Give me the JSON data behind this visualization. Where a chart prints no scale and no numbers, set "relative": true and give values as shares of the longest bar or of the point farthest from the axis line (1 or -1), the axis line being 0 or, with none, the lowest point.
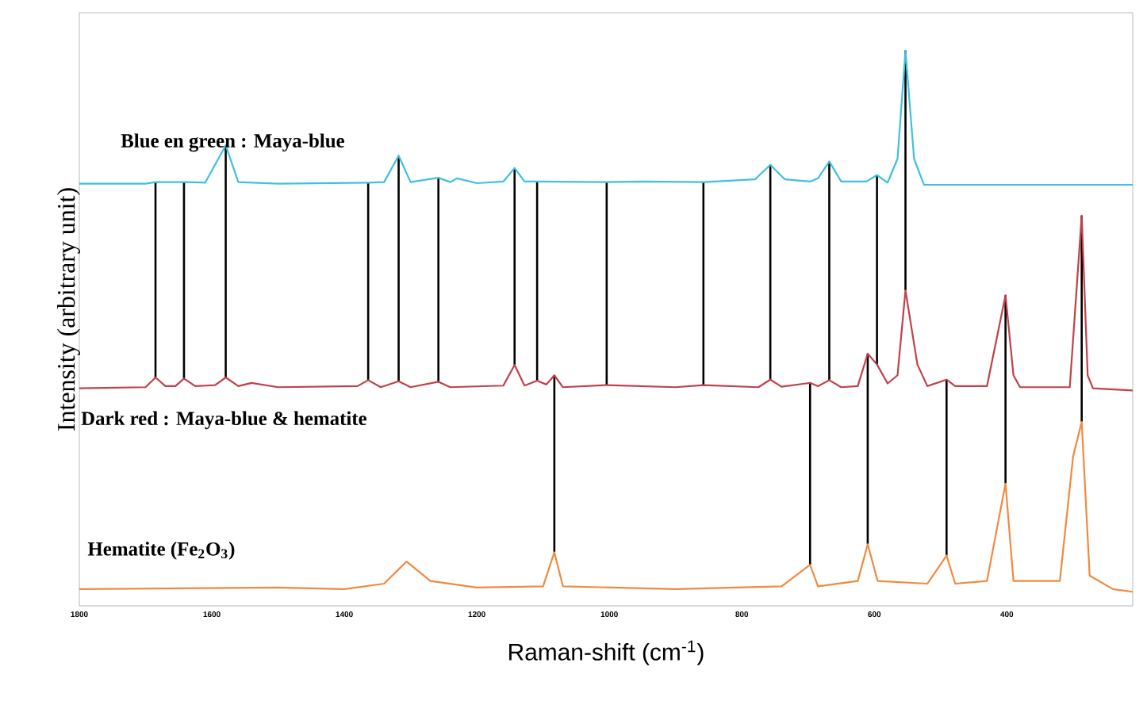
{
  "chart_data": {
    "type": "line",
    "relative": true,
    "xlabel": "Raman-shift (cm$^{-1}$)",
    "ylabel": "Intensity (arbitrary unit)",
    "xlim": [
      1800,
      210
    ],
    "xticks": [
      1800,
      1600,
      1400,
      1200,
      1000,
      800,
      600,
      400
    ],
    "grid": false,
    "legend": false,
    "marker": "none",
    "line_style": "solid",
    "series": [
      {
        "name": "**Blue en green : Maya-blue**",
        "color": "#3fc0e0",
        "x": [
          1800,
          1700,
          1685,
          1642,
          1610,
          1579,
          1560,
          1500,
          1364,
          1340,
          1318,
          1300,
          1258,
          1240,
          1230,
          1200,
          1160,
          1143,
          1128,
          1109,
          1004,
          950,
          858,
          780,
          757,
          735,
          697,
          685,
          668,
          650,
          612,
          596,
          580,
          565,
          553,
          540,
          525,
          400,
          210
        ],
        "values": [
          0.754,
          0.754,
          0.757,
          0.757,
          0.756,
          0.825,
          0.757,
          0.754,
          0.756,
          0.757,
          0.806,
          0.757,
          0.765,
          0.757,
          0.764,
          0.755,
          0.758,
          0.783,
          0.758,
          0.758,
          0.757,
          0.758,
          0.757,
          0.762,
          0.789,
          0.762,
          0.758,
          0.764,
          0.795,
          0.758,
          0.758,
          0.77,
          0.756,
          0.8,
          1.0,
          0.8,
          0.752,
          0.752,
          0.752
        ]
      },
      {
        "name": "**Dark red : Maya-blue & hematite**",
        "color": "#c0404a",
        "x": [
          1800,
          1700,
          1685,
          1670,
          1655,
          1642,
          1625,
          1595,
          1579,
          1560,
          1540,
          1500,
          1380,
          1364,
          1345,
          1318,
          1300,
          1258,
          1240,
          1160,
          1143,
          1128,
          1109,
          1095,
          1083,
          1070,
          1004,
          900,
          858,
          775,
          757,
          740,
          697,
          685,
          668,
          650,
          625,
          610,
          596,
          580,
          565,
          553,
          535,
          520,
          491,
          478,
          430,
          402,
          390,
          380,
          305,
          287,
          278,
          270,
          210
        ],
        "values": [
          0.376,
          0.378,
          0.396,
          0.38,
          0.38,
          0.394,
          0.38,
          0.382,
          0.396,
          0.38,
          0.386,
          0.378,
          0.38,
          0.391,
          0.378,
          0.389,
          0.378,
          0.388,
          0.378,
          0.381,
          0.419,
          0.381,
          0.39,
          0.383,
          0.4,
          0.378,
          0.382,
          0.378,
          0.382,
          0.378,
          0.392,
          0.379,
          0.386,
          0.38,
          0.391,
          0.378,
          0.38,
          0.44,
          0.42,
          0.385,
          0.4,
          0.557,
          0.42,
          0.38,
          0.392,
          0.38,
          0.38,
          0.548,
          0.4,
          0.378,
          0.378,
          0.695,
          0.4,
          0.376,
          0.372
        ]
      },
      {
        "name": "**Hematite (Fe$_{2}$O$_{3}$)**",
        "color": "#f08a40",
        "x": [
          1800,
          1500,
          1400,
          1340,
          1306,
          1270,
          1200,
          1100,
          1083,
          1070,
          900,
          740,
          697,
          685,
          625,
          610,
          595,
          520,
          491,
          478,
          430,
          402,
          390,
          320,
          300,
          287,
          275,
          240,
          210
        ],
        "values": [
          0.005,
          0.008,
          0.005,
          0.015,
          0.056,
          0.02,
          0.008,
          0.01,
          0.073,
          0.01,
          0.005,
          0.01,
          0.05,
          0.01,
          0.02,
          0.088,
          0.02,
          0.015,
          0.067,
          0.015,
          0.02,
          0.2,
          0.02,
          0.02,
          0.25,
          0.314,
          0.03,
          0.005,
          0.0
        ]
      }
    ],
    "ref_lines": [
      {
        "axis": "x",
        "value": 1685,
        "color": "#000000"
      },
      {
        "axis": "x",
        "value": 1642,
        "color": "#000000"
      },
      {
        "axis": "x",
        "value": 1579,
        "color": "#000000"
      },
      {
        "axis": "x",
        "value": 1364,
        "color": "#000000"
      },
      {
        "axis": "x",
        "value": 1318,
        "color": "#000000"
      },
      {
        "axis": "x",
        "value": 1258,
        "color": "#000000"
      },
      {
        "axis": "x",
        "value": 1143,
        "color": "#000000"
      },
      {
        "axis": "x",
        "value": 1109,
        "color": "#000000"
      },
      {
        "axis": "x",
        "value": 1083,
        "color": "#000000"
      },
      {
        "axis": "x",
        "value": 1004,
        "color": "#000000"
      },
      {
        "axis": "x",
        "value": 858,
        "color": "#000000"
      },
      {
        "axis": "x",
        "value": 757,
        "color": "#000000"
      },
      {
        "axis": "x",
        "value": 697,
        "color": "#000000"
      },
      {
        "axis": "x",
        "value": 668,
        "color": "#000000"
      },
      {
        "axis": "x",
        "value": 610,
        "color": "#000000"
      },
      {
        "axis": "x",
        "value": 596,
        "color": "#000000"
      },
      {
        "axis": "x",
        "value": 553,
        "color": "#000000"
      },
      {
        "axis": "x",
        "value": 491,
        "color": "#000000"
      },
      {
        "axis": "x",
        "value": 402,
        "color": "#000000"
      },
      {
        "axis": "x",
        "value": 287,
        "color": "#000000"
      }
    ]
  }
}
